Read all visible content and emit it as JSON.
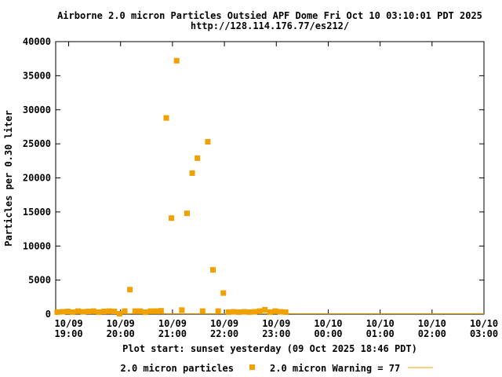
{
  "colors": {
    "points": "#f0a000",
    "warning_line": "#f0a000",
    "axis": "#000000",
    "background": "#ffffff"
  },
  "chart_data": {
    "type": "scatter",
    "title_line1": "Airborne 2.0 micron Particles Outsied APF Dome Fri Oct 10 03:10:01 PDT 2025",
    "title_line2": "http://128.114.176.77/es212/",
    "ylabel": "Particles per 0.30 liter",
    "xlabel": "Plot start: sunset yesterday (09 Oct 2025 18:46 PDT)",
    "ylim": [
      0,
      40000
    ],
    "xlim_hours": [
      18.75,
      27.0
    ],
    "yticks": [
      "0",
      "5000",
      "10000",
      "15000",
      "20000",
      "25000",
      "30000",
      "35000",
      "40000"
    ],
    "ytick_values": [
      0,
      5000,
      10000,
      15000,
      20000,
      25000,
      30000,
      35000,
      40000
    ],
    "xticks": [
      {
        "date": "10/09",
        "time": "19:00",
        "hour": 19
      },
      {
        "date": "10/09",
        "time": "20:00",
        "hour": 20
      },
      {
        "date": "10/09",
        "time": "21:00",
        "hour": 21
      },
      {
        "date": "10/09",
        "time": "22:00",
        "hour": 22
      },
      {
        "date": "10/09",
        "time": "23:00",
        "hour": 23
      },
      {
        "date": "10/10",
        "time": "00:00",
        "hour": 24
      },
      {
        "date": "10/10",
        "time": "01:00",
        "hour": 25
      },
      {
        "date": "10/10",
        "time": "02:00",
        "hour": 26
      },
      {
        "date": "10/10",
        "time": "03:00",
        "hour": 27
      }
    ],
    "grid": false,
    "legend_position": "bottom",
    "series": [
      {
        "name": "2.0 micron particles",
        "marker": "square",
        "points": [
          {
            "hour": 18.78,
            "y": 300
          },
          {
            "hour": 18.88,
            "y": 350
          },
          {
            "hour": 18.98,
            "y": 400
          },
          {
            "hour": 19.08,
            "y": 300
          },
          {
            "hour": 19.18,
            "y": 450
          },
          {
            "hour": 19.28,
            "y": 350
          },
          {
            "hour": 19.38,
            "y": 400
          },
          {
            "hour": 19.48,
            "y": 450
          },
          {
            "hour": 19.58,
            "y": 300
          },
          {
            "hour": 19.68,
            "y": 400
          },
          {
            "hour": 19.78,
            "y": 450
          },
          {
            "hour": 19.88,
            "y": 400
          },
          {
            "hour": 19.98,
            "y": 50
          },
          {
            "hour": 20.08,
            "y": 450
          },
          {
            "hour": 20.18,
            "y": 3600
          },
          {
            "hour": 20.28,
            "y": 450
          },
          {
            "hour": 20.38,
            "y": 450
          },
          {
            "hour": 20.48,
            "y": 300
          },
          {
            "hour": 20.58,
            "y": 450
          },
          {
            "hour": 20.68,
            "y": 450
          },
          {
            "hour": 20.78,
            "y": 500
          },
          {
            "hour": 20.88,
            "y": 28800
          },
          {
            "hour": 20.98,
            "y": 14100
          },
          {
            "hour": 21.08,
            "y": 37200
          },
          {
            "hour": 21.18,
            "y": 600
          },
          {
            "hour": 21.28,
            "y": 14800
          },
          {
            "hour": 21.38,
            "y": 20700
          },
          {
            "hour": 21.48,
            "y": 22900
          },
          {
            "hour": 21.58,
            "y": 450
          },
          {
            "hour": 21.68,
            "y": 25300
          },
          {
            "hour": 21.78,
            "y": 6500
          },
          {
            "hour": 21.88,
            "y": 450
          },
          {
            "hour": 21.98,
            "y": 3100
          },
          {
            "hour": 22.08,
            "y": 300
          },
          {
            "hour": 22.18,
            "y": 350
          },
          {
            "hour": 22.28,
            "y": 300
          },
          {
            "hour": 22.38,
            "y": 350
          },
          {
            "hour": 22.48,
            "y": 300
          },
          {
            "hour": 22.58,
            "y": 350
          },
          {
            "hour": 22.68,
            "y": 450
          },
          {
            "hour": 22.78,
            "y": 650
          },
          {
            "hour": 22.88,
            "y": 300
          },
          {
            "hour": 22.98,
            "y": 450
          },
          {
            "hour": 23.08,
            "y": 350
          },
          {
            "hour": 23.18,
            "y": 300
          }
        ]
      },
      {
        "name": "2.0 micron Warning = 77",
        "type": "line",
        "y": 77
      }
    ]
  }
}
